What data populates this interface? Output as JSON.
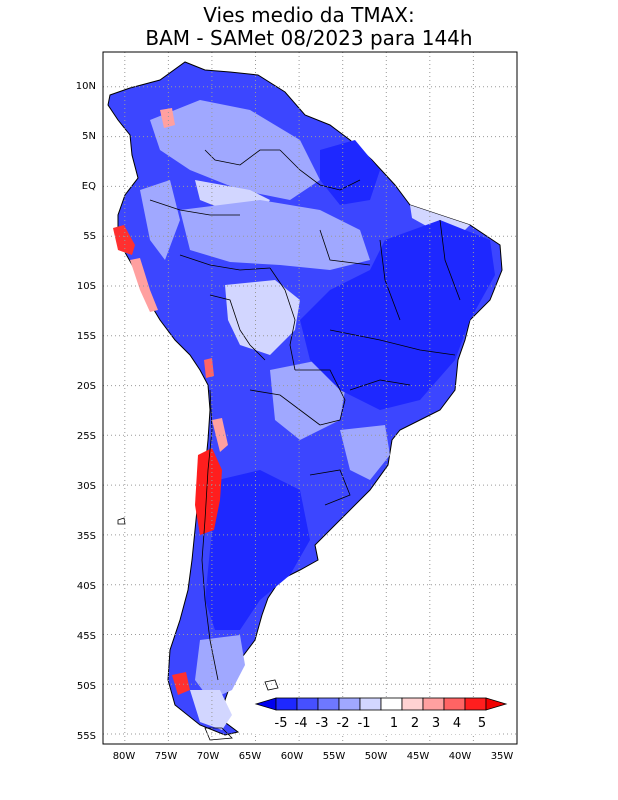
{
  "title": {
    "line1": "Vies medio da TMAX:",
    "line2": "BAM - SAMet 08/2023  para 144h"
  },
  "map": {
    "lat_labels": [
      "10N",
      "5N",
      "EQ",
      "5S",
      "10S",
      "15S",
      "20S",
      "25S",
      "30S",
      "35S",
      "40S",
      "45S",
      "50S",
      "55S"
    ],
    "lon_labels": [
      "80W",
      "75W",
      "70W",
      "65W",
      "60W",
      "55W",
      "50W",
      "45W",
      "40W",
      "35W"
    ],
    "lat_values": [
      10,
      5,
      0,
      -5,
      -10,
      -15,
      -20,
      -25,
      -30,
      -35,
      -40,
      -45,
      -50,
      -55
    ],
    "lon_values": [
      -80,
      -75,
      -70,
      -65,
      -60,
      -55,
      -50,
      -45,
      -40,
      -35
    ],
    "extent": {
      "lon_min": -82.5,
      "lon_max": -35,
      "lat_min": -56,
      "lat_max": 13.5
    }
  },
  "colorbar": {
    "labels": [
      "-5",
      "-4",
      "-3",
      "-2",
      "-1",
      "1",
      "2",
      "3",
      "4",
      "5"
    ],
    "colors": [
      "#1e28ff",
      "#4650ff",
      "#6e78ff",
      "#a0a8ff",
      "#d2d6ff",
      "#ffffff",
      "#ffd2d2",
      "#ffa0a0",
      "#ff6464",
      "#ff1e1e"
    ],
    "low_color": "#0000f0",
    "high_color": "#f00000"
  },
  "colors": {
    "land_blue": "#3c46ff",
    "frame": "#000000",
    "grid": "#9a9a9a"
  }
}
